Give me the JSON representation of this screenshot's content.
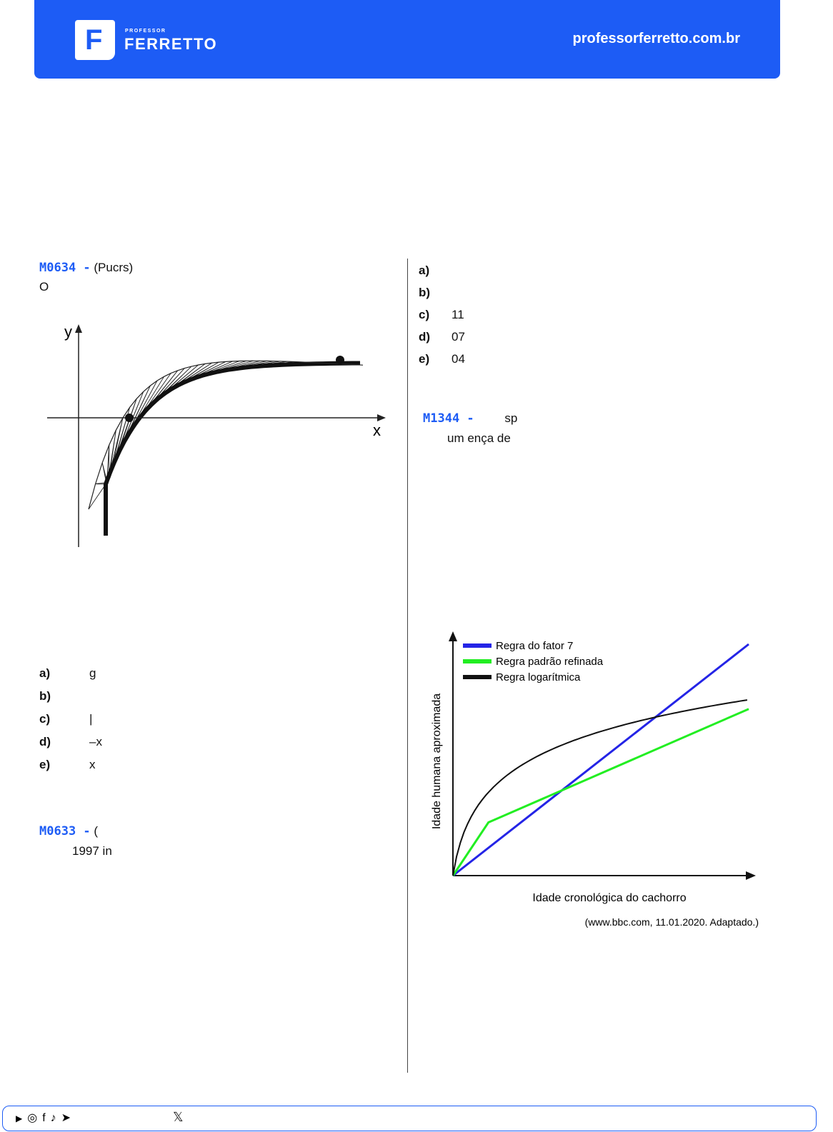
{
  "header": {
    "logo_letter": "F",
    "brand_small": "PROFESSOR",
    "brand_big": "FERRETTO",
    "site": "professorferretto.com.br"
  },
  "left": {
    "q1": {
      "id": "M0634 -",
      "source": "(Pucrs)",
      "line2": "O"
    },
    "graph": {
      "ylabel": "y",
      "xlabel": "x"
    },
    "options": [
      {
        "letter": "a)",
        "text": "g"
      },
      {
        "letter": "b)",
        "text": ""
      },
      {
        "letter": "c)",
        "text": "|"
      },
      {
        "letter": "d)",
        "text": "–x"
      },
      {
        "letter": "e)",
        "text": "x"
      }
    ],
    "q2": {
      "id": "M0633 -",
      "source": "(",
      "line2": "1997    in"
    }
  },
  "right": {
    "options": [
      {
        "letter": "a)",
        "text": ""
      },
      {
        "letter": "b)",
        "text": ""
      },
      {
        "letter": "c)",
        "text": "11"
      },
      {
        "letter": "d)",
        "text": "07"
      },
      {
        "letter": "e)",
        "text": "04"
      }
    ],
    "q3": {
      "id": "M1344 -",
      "line1": "sp",
      "line2": "um       ença  de"
    },
    "chart_data": {
      "type": "line",
      "xlabel": "Idade cronológica do cachorro",
      "ylabel": "Idade humana aproximada",
      "source": "(www.bbc.com, 11.01.2020. Adaptado.)",
      "legend_position": "top-left",
      "series": [
        {
          "name": "Regra do fator 7",
          "color": "#2424e6",
          "points": [
            [
              0,
              0
            ],
            [
              1,
              1
            ]
          ]
        },
        {
          "name": "Regra padrão refinada",
          "color": "#22ee22",
          "points": [
            [
              0,
              0
            ],
            [
              0.12,
              0.23
            ],
            [
              1,
              0.72
            ]
          ]
        },
        {
          "name": "Regra logarítmica",
          "color": "#111111",
          "points": [
            [
              0,
              0
            ],
            [
              0.02,
              0.18
            ],
            [
              0.05,
              0.3
            ],
            [
              0.1,
              0.4
            ],
            [
              0.2,
              0.5
            ],
            [
              0.35,
              0.58
            ],
            [
              0.55,
              0.65
            ],
            [
              0.75,
              0.7
            ],
            [
              1,
              0.76
            ]
          ]
        }
      ]
    }
  },
  "footer": {
    "icons": [
      "youtube-icon",
      "instagram-icon",
      "facebook-icon",
      "tiktok-icon",
      "telegram-icon"
    ],
    "x_glyph": "𝕏"
  }
}
